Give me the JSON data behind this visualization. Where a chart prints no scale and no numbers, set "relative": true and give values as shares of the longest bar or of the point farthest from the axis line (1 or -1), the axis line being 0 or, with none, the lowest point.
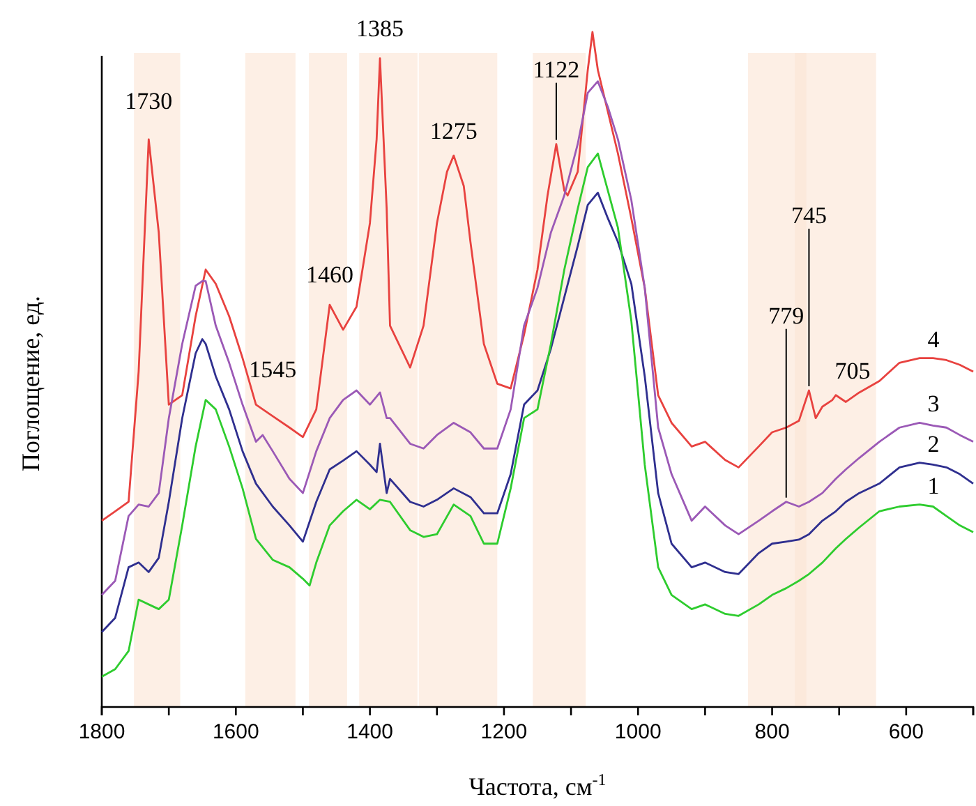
{
  "chart_data": {
    "type": "line",
    "relative": true,
    "xlabel": "Частота, см$^{-1}$",
    "ylabel": "Поглощение, ед.",
    "xlim": [
      1800,
      500
    ],
    "xticks": [
      1800,
      1600,
      1400,
      1200,
      1000,
      800,
      600,
      {
        "value": 1700,
        "label": null
      },
      {
        "value": 1500,
        "label": null
      },
      {
        "value": 1300,
        "label": null
      },
      {
        "value": 1100,
        "label": null
      },
      {
        "value": 900,
        "label": null
      },
      {
        "value": 700,
        "label": null
      },
      {
        "value": 500,
        "label": null
      }
    ],
    "x": [
      1800,
      1780,
      1760,
      1745,
      1730,
      1715,
      1700,
      1680,
      1660,
      1645,
      1630,
      1610,
      1590,
      1570,
      1545,
      1520,
      1500,
      1480,
      1460,
      1440,
      1420,
      1400,
      1390,
      1385,
      1375,
      1370,
      1340,
      1320,
      1300,
      1285,
      1275,
      1260,
      1250,
      1230,
      1210,
      1190,
      1170,
      1150,
      1135,
      1122,
      1110,
      1105,
      1090,
      1075,
      1068,
      1060,
      1045,
      1030,
      1010,
      990,
      970,
      950,
      920,
      900,
      870,
      850,
      820,
      800,
      779,
      760,
      745,
      735,
      725,
      710,
      705,
      690,
      670,
      640,
      610,
      580,
      560,
      540,
      520,
      500
    ],
    "series": [
      {
        "name": "4",
        "color": "#e8423f",
        "values": [
          0.276,
          0.29,
          0.304,
          0.497,
          0.841,
          0.703,
          0.448,
          0.462,
          0.579,
          0.648,
          0.627,
          0.579,
          0.517,
          0.448,
          0.431,
          0.414,
          0.4,
          0.441,
          0.596,
          0.559,
          0.593,
          0.717,
          0.841,
          0.961,
          0.738,
          0.565,
          0.503,
          0.565,
          0.717,
          0.793,
          0.817,
          0.772,
          0.689,
          0.538,
          0.479,
          0.472,
          0.552,
          0.648,
          0.758,
          0.834,
          0.765,
          0.758,
          0.793,
          0.944,
          1.0,
          0.944,
          0.882,
          0.82,
          0.724,
          0.621,
          0.462,
          0.421,
          0.386,
          0.393,
          0.366,
          0.355,
          0.386,
          0.407,
          0.414,
          0.424,
          0.469,
          0.428,
          0.445,
          0.455,
          0.462,
          0.452,
          0.466,
          0.483,
          0.51,
          0.517,
          0.517,
          0.514,
          0.507,
          0.497
        ]
      },
      {
        "name": "3",
        "color": "#9b59b6",
        "x": [
          1800,
          1780,
          1760,
          1745,
          1730,
          1715,
          1700,
          1680,
          1660,
          1650,
          1645,
          1630,
          1610,
          1590,
          1570,
          1560,
          1545,
          1520,
          1500,
          1480,
          1460,
          1440,
          1420,
          1400,
          1385,
          1375,
          1370,
          1340,
          1320,
          1300,
          1275,
          1250,
          1230,
          1210,
          1190,
          1170,
          1150,
          1130,
          1110,
          1090,
          1075,
          1060,
          1045,
          1030,
          1010,
          990,
          970,
          950,
          920,
          900,
          870,
          850,
          820,
          800,
          779,
          760,
          745,
          725,
          705,
          690,
          670,
          640,
          610,
          580,
          560,
          540,
          520,
          500
        ],
        "values": [
          0.166,
          0.187,
          0.283,
          0.3,
          0.297,
          0.317,
          0.428,
          0.538,
          0.624,
          0.631,
          0.631,
          0.565,
          0.51,
          0.448,
          0.393,
          0.403,
          0.379,
          0.338,
          0.317,
          0.379,
          0.428,
          0.455,
          0.469,
          0.448,
          0.466,
          0.428,
          0.428,
          0.39,
          0.383,
          0.403,
          0.421,
          0.407,
          0.383,
          0.383,
          0.441,
          0.565,
          0.621,
          0.703,
          0.758,
          0.834,
          0.91,
          0.927,
          0.889,
          0.841,
          0.751,
          0.621,
          0.414,
          0.345,
          0.276,
          0.297,
          0.269,
          0.256,
          0.276,
          0.29,
          0.304,
          0.297,
          0.304,
          0.317,
          0.338,
          0.352,
          0.369,
          0.393,
          0.414,
          0.421,
          0.417,
          0.414,
          0.403,
          0.393
        ]
      },
      {
        "name": "2",
        "color": "#2f2f8f",
        "x": [
          1800,
          1780,
          1760,
          1745,
          1730,
          1715,
          1700,
          1680,
          1660,
          1650,
          1645,
          1630,
          1610,
          1590,
          1570,
          1545,
          1520,
          1500,
          1480,
          1460,
          1440,
          1420,
          1400,
          1390,
          1385,
          1375,
          1370,
          1340,
          1320,
          1300,
          1275,
          1250,
          1230,
          1210,
          1190,
          1170,
          1150,
          1130,
          1110,
          1090,
          1075,
          1060,
          1045,
          1030,
          1010,
          990,
          970,
          950,
          920,
          900,
          870,
          850,
          820,
          800,
          779,
          760,
          745,
          725,
          705,
          690,
          670,
          640,
          610,
          580,
          560,
          540,
          520,
          500
        ],
        "values": [
          0.111,
          0.132,
          0.207,
          0.214,
          0.2,
          0.221,
          0.304,
          0.428,
          0.524,
          0.545,
          0.538,
          0.49,
          0.441,
          0.379,
          0.331,
          0.297,
          0.269,
          0.245,
          0.304,
          0.352,
          0.365,
          0.379,
          0.359,
          0.348,
          0.39,
          0.317,
          0.338,
          0.304,
          0.297,
          0.307,
          0.324,
          0.311,
          0.287,
          0.287,
          0.345,
          0.448,
          0.469,
          0.531,
          0.607,
          0.683,
          0.744,
          0.762,
          0.724,
          0.689,
          0.627,
          0.49,
          0.317,
          0.242,
          0.207,
          0.214,
          0.2,
          0.197,
          0.228,
          0.242,
          0.245,
          0.248,
          0.256,
          0.276,
          0.29,
          0.304,
          0.317,
          0.331,
          0.355,
          0.362,
          0.359,
          0.355,
          0.345,
          0.331
        ]
      },
      {
        "name": "1",
        "color": "#2ecc2e",
        "x": [
          1800,
          1780,
          1760,
          1745,
          1730,
          1715,
          1700,
          1680,
          1660,
          1645,
          1630,
          1610,
          1590,
          1570,
          1545,
          1520,
          1500,
          1490,
          1480,
          1460,
          1440,
          1420,
          1400,
          1385,
          1370,
          1340,
          1320,
          1300,
          1275,
          1250,
          1230,
          1210,
          1190,
          1170,
          1150,
          1130,
          1110,
          1090,
          1075,
          1060,
          1045,
          1030,
          1010,
          990,
          970,
          950,
          920,
          900,
          870,
          850,
          820,
          800,
          779,
          760,
          745,
          725,
          705,
          690,
          670,
          640,
          610,
          580,
          560,
          540,
          520,
          500
        ],
        "values": [
          0.045,
          0.056,
          0.083,
          0.159,
          0.152,
          0.145,
          0.159,
          0.269,
          0.386,
          0.455,
          0.441,
          0.386,
          0.324,
          0.249,
          0.218,
          0.207,
          0.19,
          0.18,
          0.214,
          0.269,
          0.29,
          0.307,
          0.293,
          0.307,
          0.304,
          0.262,
          0.252,
          0.256,
          0.3,
          0.283,
          0.242,
          0.242,
          0.324,
          0.428,
          0.441,
          0.538,
          0.648,
          0.738,
          0.8,
          0.82,
          0.765,
          0.71,
          0.572,
          0.359,
          0.207,
          0.166,
          0.145,
          0.152,
          0.138,
          0.135,
          0.152,
          0.166,
          0.176,
          0.187,
          0.197,
          0.214,
          0.235,
          0.249,
          0.266,
          0.29,
          0.297,
          0.3,
          0.297,
          0.283,
          0.269,
          0.259
        ]
      }
    ],
    "bands": [
      {
        "axis": "x",
        "from": 1752,
        "to": 1683,
        "color": "#fbe4d4"
      },
      {
        "axis": "x",
        "from": 1586,
        "to": 1511,
        "color": "#fbe4d4"
      },
      {
        "axis": "x",
        "from": 1491,
        "to": 1434,
        "color": "#fbe4d4"
      },
      {
        "axis": "x",
        "from": 1416,
        "to": 1329,
        "color": "#fbe4d4"
      },
      {
        "axis": "x",
        "from": 1327,
        "to": 1210,
        "color": "#fbe4d4"
      },
      {
        "axis": "x",
        "from": 1157,
        "to": 1078,
        "color": "#fbe4d4"
      },
      {
        "axis": "x",
        "from": 836,
        "to": 749,
        "color": "#fbe4d4"
      },
      {
        "axis": "x",
        "from": 766,
        "to": 645,
        "color": "#fbe4d4"
      }
    ],
    "annotations": [
      {
        "text": "1730",
        "x": 1730,
        "y": 0.841
      },
      {
        "text": "1545",
        "x": 1545,
        "y": 0.431
      },
      {
        "text": "1460",
        "x": 1460,
        "y": 0.596
      },
      {
        "text": "1385",
        "x": 1385,
        "y": 0.961
      },
      {
        "text": "1275",
        "x": 1275,
        "y": 0.817
      },
      {
        "text": "1122",
        "x": 1122,
        "y": 0.834
      },
      {
        "text": "779",
        "x": 779,
        "y": 0.304
      },
      {
        "text": "745",
        "x": 745,
        "y": 0.469
      },
      {
        "text": "705",
        "x": 705,
        "y": 0.462
      }
    ],
    "marker": "none",
    "line_style": "solid"
  }
}
